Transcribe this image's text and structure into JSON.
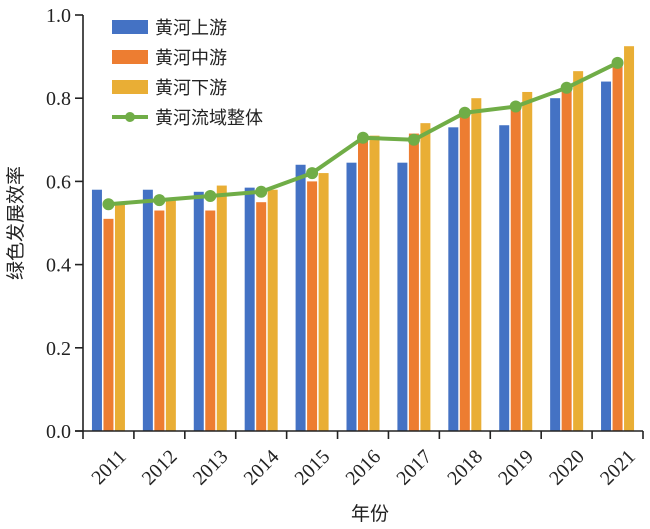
{
  "chart_data": {
    "type": "bar",
    "title": "",
    "xlabel": "年份",
    "ylabel": "绿色发展效率",
    "ylim": [
      0.0,
      1.0
    ],
    "yticks": [
      "0.0",
      "0.2",
      "0.4",
      "0.6",
      "0.8",
      "1.0"
    ],
    "ytick_values": [
      0.0,
      0.2,
      0.4,
      0.6,
      0.8,
      1.0
    ],
    "grid": false,
    "legend_position": "top-left",
    "categories": [
      "2011",
      "2012",
      "2013",
      "2014",
      "2015",
      "2016",
      "2017",
      "2018",
      "2019",
      "2020",
      "2021"
    ],
    "series": [
      {
        "name": "黄河上游",
        "kind": "bar",
        "color": "#4472C4",
        "values": [
          0.58,
          0.58,
          0.575,
          0.585,
          0.64,
          0.645,
          0.645,
          0.73,
          0.735,
          0.8,
          0.84
        ]
      },
      {
        "name": "黄河中游",
        "kind": "bar",
        "color": "#ED7D31",
        "values": [
          0.51,
          0.53,
          0.53,
          0.55,
          0.6,
          0.71,
          0.715,
          0.77,
          0.78,
          0.83,
          0.88
        ]
      },
      {
        "name": "黄河下游",
        "kind": "bar",
        "color": "#E9AE35",
        "values": [
          0.55,
          0.56,
          0.59,
          0.58,
          0.62,
          0.71,
          0.74,
          0.8,
          0.815,
          0.865,
          0.925
        ]
      },
      {
        "name": "黄河流域整体",
        "kind": "line",
        "color": "#70AD47",
        "values": [
          0.545,
          0.555,
          0.565,
          0.575,
          0.62,
          0.705,
          0.7,
          0.765,
          0.78,
          0.825,
          0.885
        ]
      }
    ]
  }
}
